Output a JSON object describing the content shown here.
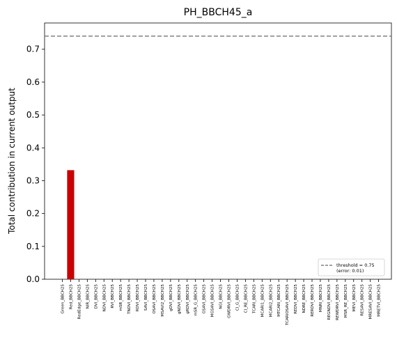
{
  "chart_data": {
    "type": "bar",
    "title": "PH_BBCH45_a",
    "xlabel": "",
    "ylabel": "Total contribution in current output",
    "ylim": [
      0,
      0.78
    ],
    "yticks": [
      0.0,
      0.1,
      0.2,
      0.3,
      0.4,
      0.5,
      0.6,
      0.7
    ],
    "ytick_labels": [
      "0.0",
      "0.1",
      "0.2",
      "0.3",
      "0.4",
      "0.5",
      "0.6",
      "0.7"
    ],
    "grid": false,
    "bar_color": "#cc0000",
    "threshold_line": {
      "value": 0.74,
      "color": "#808080",
      "style": "dashed"
    },
    "legend": {
      "placement": "lower-right",
      "entries": [
        {
          "line1": "threshold = 0.75",
          "line2": "(error: 0.01)"
        }
      ]
    },
    "categories": [
      "Green_BBCH25",
      "Red_BBCH25",
      "RedEdge_BBCH25",
      "NIR_BBCH25",
      "DVI_BBCH25",
      "NDVI_BBCH25",
      "RVI_BBCH25",
      "mSR_BBCH25",
      "TNDVI_BBCH25",
      "RDVI_BBCH25",
      "SAVI_BBCH25",
      "OSAVI_BBCH25",
      "MSAVI2_BBCH25",
      "gDVI_BBCH25",
      "gNDVI_BBCH25",
      "gRDVI_BBCH25",
      "mSR_G_BBCH25",
      "GSAVI_BBCH25",
      "MGSAVI_BBCH25",
      "NGI_BBCH25",
      "GWDRVI_BBCH25",
      "CI_G_BBCH25",
      "CI_RE_BBCH25",
      "TCARI_BBCH25",
      "MCARI1_BBCH25",
      "MCARI2_BBCH25",
      "MTCARI_BBCH25",
      "TCARIOSAVI_BBCH25",
      "REDVI_BBCH25",
      "NDRE_BBCH25",
      "RERDVI_BBCH25",
      "MNRI_BBCH25",
      "REGNDVI_BBCH25",
      "REWDRVI_BBCH25",
      "MSR_RE_BBCH25",
      "MEVI_BBCH25",
      "RESAVI_BBCH25",
      "MRESAVI_BBCH25",
      "MRETVI_BBCH25"
    ],
    "values": [
      0.0,
      0.332,
      0.0,
      0.0,
      0.0,
      0.0,
      0.0,
      0.0,
      0.0,
      0.0,
      0.0,
      0.0,
      0.0,
      0.0,
      0.0,
      0.0,
      0.0,
      0.0,
      0.0,
      0.0,
      0.0,
      0.0,
      0.0,
      0.0,
      0.0,
      0.0,
      0.0,
      0.0,
      0.0,
      0.0,
      0.0,
      0.0,
      0.0,
      0.0,
      0.0,
      0.0,
      0.0,
      0.0,
      0.0
    ]
  }
}
